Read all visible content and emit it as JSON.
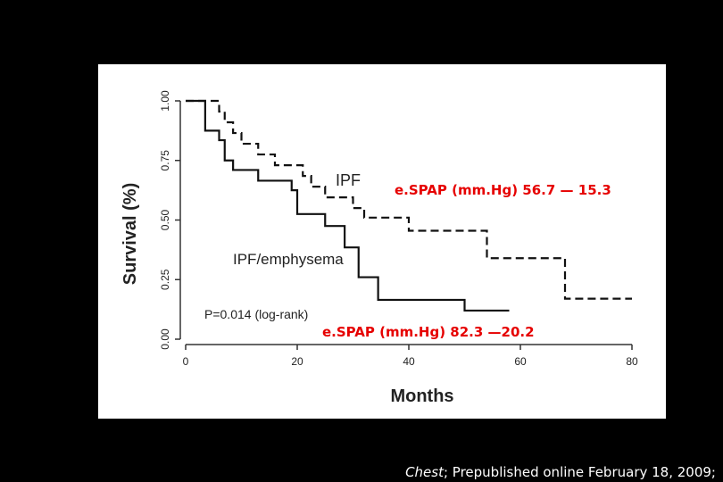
{
  "chart_data": {
    "type": "line",
    "subtype": "kaplan-meier-step",
    "xlabel": "Months",
    "ylabel": "Survival  (%)",
    "xlim": [
      0,
      80
    ],
    "ylim": [
      0,
      1
    ],
    "xticks": [
      "0",
      "20",
      "40",
      "60",
      "80"
    ],
    "yticks": [
      "0.00",
      "0.25",
      "0.50",
      "0.75",
      "1.00"
    ],
    "grid": false,
    "series": [
      {
        "name": "IPF",
        "style": "dashed",
        "x": [
          0,
          6,
          7,
          8.5,
          10,
          11,
          13,
          16,
          21,
          22.5,
          25,
          30,
          32,
          40,
          54,
          68,
          80
        ],
        "y": [
          1.0,
          0.955,
          0.91,
          0.865,
          0.82,
          0.82,
          0.775,
          0.73,
          0.685,
          0.64,
          0.595,
          0.55,
          0.51,
          0.455,
          0.34,
          0.17,
          0.17
        ]
      },
      {
        "name": "IPF/emphysema",
        "style": "solid",
        "x": [
          0,
          3.5,
          6,
          7,
          8.5,
          13,
          19,
          20,
          25,
          28.5,
          31,
          34.5,
          50,
          58
        ],
        "y": [
          1.0,
          0.875,
          0.835,
          0.75,
          0.71,
          0.665,
          0.625,
          0.525,
          0.475,
          0.385,
          0.26,
          0.165,
          0.12,
          0.12
        ]
      }
    ],
    "annotations": {
      "ipf_label": "IPF",
      "emph_label": "IPF/emphysema",
      "pvalue": "P=0.014 (log-rank)",
      "espap_ipf": "e.SPAP (mm.Hg) 56.7 — 15.3",
      "espap_emph": "e.SPAP (mm.Hg) 82.3 —20.2"
    },
    "annotation_color": "#e60000"
  },
  "citation": {
    "journal": "Chest",
    "text": "; Prepublished online February 18, 2009;"
  }
}
